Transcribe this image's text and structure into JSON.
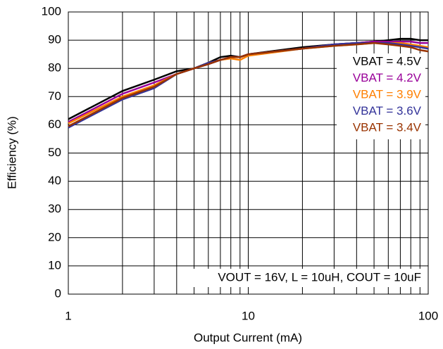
{
  "chart_data": {
    "type": "line",
    "xlabel": "Output Current (mA)",
    "ylabel": "Efficiency (%)",
    "x": [
      1,
      2,
      3,
      4,
      5,
      6,
      7,
      8,
      9,
      10,
      20,
      30,
      40,
      50,
      60,
      70,
      80,
      90,
      100
    ],
    "series": [
      {
        "name": "VBAT = 4.5V",
        "color": "#000000",
        "values": [
          62,
          72,
          76,
          79,
          80,
          82,
          84,
          84.5,
          84,
          85,
          87.5,
          88.5,
          89,
          89.5,
          90,
          90.5,
          90.5,
          90,
          90
        ]
      },
      {
        "name": "VBAT = 4.2V",
        "color": "#990099",
        "values": [
          61,
          71,
          75,
          78,
          80,
          81.5,
          83,
          84,
          84,
          85,
          87,
          88.5,
          89,
          89.5,
          89.5,
          89.5,
          89.5,
          89,
          89
        ]
      },
      {
        "name": "VBAT = 3.9V",
        "color": "#ff7f00",
        "values": [
          60.5,
          70,
          74,
          78,
          80,
          82,
          83,
          83.5,
          83,
          84.5,
          87,
          88,
          88.5,
          89,
          89,
          89,
          88.5,
          88,
          87.5
        ]
      },
      {
        "name": "VBAT = 3.6V",
        "color": "#333399",
        "values": [
          59,
          69,
          73,
          78,
          80,
          82,
          83,
          84,
          84,
          85,
          87,
          88.5,
          89,
          89,
          89,
          88.5,
          88,
          87.5,
          87
        ]
      },
      {
        "name": "VBAT = 3.4V",
        "color": "#993300",
        "values": [
          59.5,
          69.5,
          73.5,
          78,
          80,
          81.5,
          83,
          84,
          84,
          85,
          87,
          88,
          88.5,
          89,
          88.5,
          88,
          87.5,
          86.5,
          86
        ]
      }
    ],
    "annotation": "VOUT = 16V, L = 10uH, COUT = 10uF",
    "xscale": "log",
    "xlim": [
      1,
      100
    ],
    "xticks": [
      1,
      10,
      100
    ],
    "ylim": [
      0,
      100
    ],
    "yticks": [
      0,
      10,
      20,
      30,
      40,
      50,
      60,
      70,
      80,
      90,
      100
    ],
    "grid": true,
    "legend": "upper right"
  }
}
